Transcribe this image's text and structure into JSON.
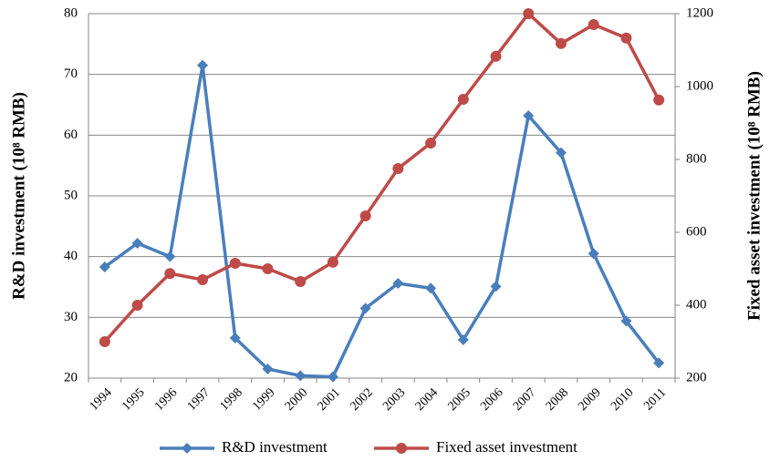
{
  "chart_data": {
    "type": "line",
    "categories": [
      "1994",
      "1995",
      "1996",
      "1997",
      "1998",
      "1999",
      "2000",
      "2001",
      "2002",
      "2003",
      "2004",
      "2005",
      "2006",
      "2007",
      "2008",
      "2009",
      "2010",
      "2011"
    ],
    "series": [
      {
        "name": "R&D investment",
        "color": "#4a7ebb",
        "marker": "diamond",
        "values": [
          38.3,
          42.2,
          40,
          71.5,
          26.6,
          21.5,
          20.4,
          20.2,
          31.5,
          35.6,
          34.8,
          26.3,
          35.1,
          63.2,
          57.1,
          40.5,
          29.4,
          22.5
        ]
      },
      {
        "name": "Fixed asset investment",
        "color": "#be4b48",
        "marker": "circle",
        "axis": "y2",
        "values": [
          300,
          400,
          487,
          470,
          515,
          500,
          465,
          518,
          645,
          775,
          845,
          965,
          1083,
          1200,
          1118,
          1170,
          1133,
          963
        ]
      }
    ],
    "ylabel": "R&D investment (10⁸ RMB)",
    "y2label": "Fixed asset investment (10⁸ RMB)",
    "ylim": [
      20,
      80
    ],
    "yticks": [
      20,
      30,
      40,
      50,
      60,
      70,
      80
    ],
    "y2lim": [
      200,
      1200
    ],
    "y2ticks": [
      200,
      400,
      600,
      800,
      1000,
      1200
    ],
    "grid": true,
    "legend": "bottom"
  }
}
